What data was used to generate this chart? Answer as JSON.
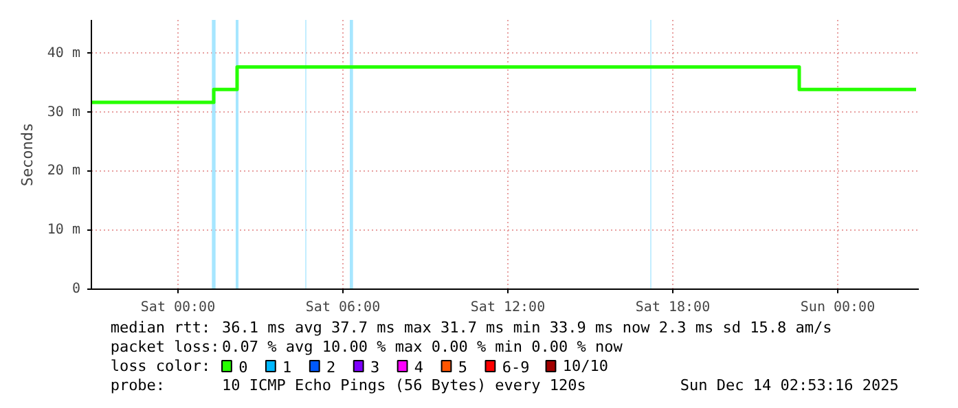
{
  "chart_data": {
    "type": "step",
    "ylabel": "Seconds",
    "xlim": [
      "2025-12-12T20:51",
      "2025-12-14T02:57"
    ],
    "xticks": [
      {
        "value": "2025-12-13T00:00",
        "label": "Sat 00:00"
      },
      {
        "value": "2025-12-13T06:00",
        "label": "Sat 06:00"
      },
      {
        "value": "2025-12-13T12:00",
        "label": "Sat 12:00"
      },
      {
        "value": "2025-12-13T18:00",
        "label": "Sat 18:00"
      },
      {
        "value": "2025-12-14T00:00",
        "label": "Sun 00:00"
      }
    ],
    "ylim": [
      0,
      45.7
    ],
    "yticks": [
      0,
      {
        "value": 10,
        "label": "10 m"
      },
      {
        "value": 20,
        "label": "20 m"
      },
      {
        "value": 30,
        "label": "30 m"
      },
      {
        "value": 40,
        "label": "40 m"
      }
    ],
    "grid": true,
    "legend": "bottom",
    "legend_title": "loss color:",
    "series": [
      {
        "name": "0",
        "color": "#26ff00",
        "x": [
          "2025-12-12T20:51",
          "2025-12-13T01:18",
          "2025-12-13T02:09",
          "2025-12-13T22:36",
          "2025-12-14T02:51"
        ],
        "values": [
          31.7,
          33.9,
          37.7,
          33.9,
          33.9
        ]
      },
      {
        "name": "1",
        "color": "#00b8ff"
      },
      {
        "name": "2",
        "color": "#0059ff"
      },
      {
        "name": "3",
        "color": "#7e00ff"
      },
      {
        "name": "4",
        "color": "#ff00ff"
      },
      {
        "name": "5",
        "color": "#ff5500"
      },
      {
        "name": "6-9",
        "color": "#ff0000"
      },
      {
        "name": "10/10",
        "color": "#a10000"
      }
    ],
    "bands": [
      {
        "axis": "x",
        "from": "2025-12-13T01:14",
        "to": "2025-12-13T01:22",
        "color": "#a6e6ff"
      },
      {
        "axis": "x",
        "from": "2025-12-13T02:06",
        "to": "2025-12-13T02:12",
        "color": "#a6e6ff"
      },
      {
        "axis": "x",
        "from": "2025-12-13T04:38",
        "to": "2025-12-13T04:40",
        "color": "#a6e6ff"
      },
      {
        "axis": "x",
        "from": "2025-12-13T06:15",
        "to": "2025-12-13T06:22",
        "color": "#a6e6ff"
      },
      {
        "axis": "x",
        "from": "2025-12-13T17:11",
        "to": "2025-12-13T17:13",
        "color": "#a6e6ff"
      }
    ],
    "annotations": [
      "median rtt:",
      "36.1 ms avg  37.7 ms max  31.7 ms min  33.9 ms now  2.3 ms sd  15.8   am/s",
      "packet loss:",
      "0.07 % avg  10.00 % max  0.00 % min  0.00 % now",
      "probe:",
      "10 ICMP Echo Pings (56 Bytes) every 120s",
      "Sun Dec 14 02:53:16 2025"
    ]
  }
}
